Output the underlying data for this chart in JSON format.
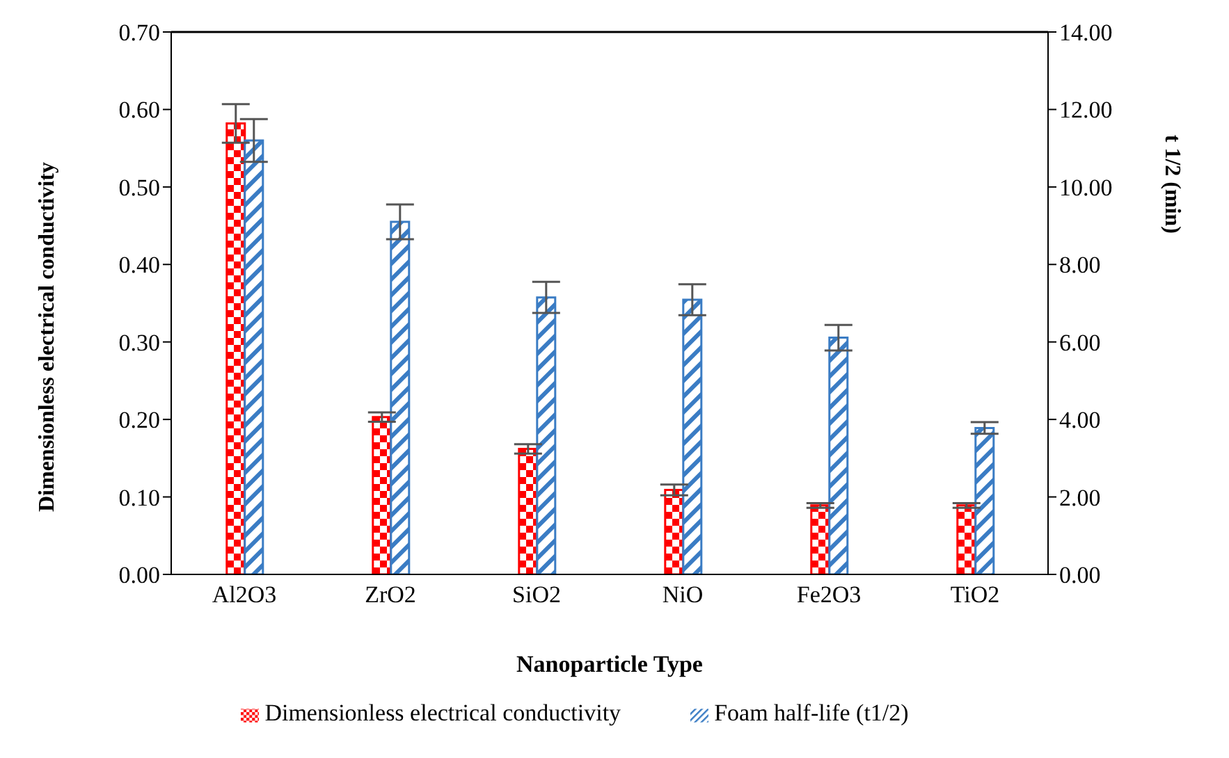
{
  "chart_data": {
    "type": "bar",
    "xlabel": "Nanoparticle Type",
    "ylabel": "Dimensionless electrical conductivity",
    "y2label": "t 1/2 (min)",
    "categories": [
      "Al2O3",
      "ZrO2",
      "SiO2",
      "NiO",
      "Fe2O3",
      "TiO2"
    ],
    "series": [
      {
        "name": "Dimensionless electrical conductivity",
        "color": "#ff0000",
        "values": [
          0.582,
          0.203,
          0.162,
          0.109,
          0.089,
          0.089
        ],
        "errors": [
          0.025,
          0.006,
          0.006,
          0.007,
          0.003,
          0.003
        ]
      },
      {
        "name": "Foam half-life (t1/2)",
        "color": "#3a7cc4",
        "axis": "y2",
        "values": [
          11.2,
          9.1,
          7.15,
          7.09,
          6.11,
          3.78
        ],
        "errors": [
          0.55,
          0.45,
          0.4,
          0.4,
          0.33,
          0.15
        ]
      }
    ],
    "ylim": [
      0,
      0.7
    ],
    "yticks": [
      {
        "value": 0,
        "label": "0.00"
      },
      {
        "value": 0.1,
        "label": "0.10"
      },
      {
        "value": 0.2,
        "label": "0.20"
      },
      {
        "value": 0.3,
        "label": "0.30"
      },
      {
        "value": 0.4,
        "label": "0.40"
      },
      {
        "value": 0.5,
        "label": "0.50"
      },
      {
        "value": 0.6,
        "label": "0.60"
      },
      {
        "value": 0.7,
        "label": "0.70"
      }
    ],
    "y2lim": [
      0,
      14
    ],
    "y2ticks": [
      {
        "value": 0,
        "label": "0.00"
      },
      {
        "value": 2,
        "label": "2.00"
      },
      {
        "value": 4,
        "label": "4.00"
      },
      {
        "value": 6,
        "label": "6.00"
      },
      {
        "value": 8,
        "label": "8.00"
      },
      {
        "value": 10,
        "label": "10.00"
      },
      {
        "value": 12,
        "label": "12.00"
      },
      {
        "value": 14,
        "label": "14.00"
      }
    ],
    "grid": false,
    "legend": "bottom"
  }
}
